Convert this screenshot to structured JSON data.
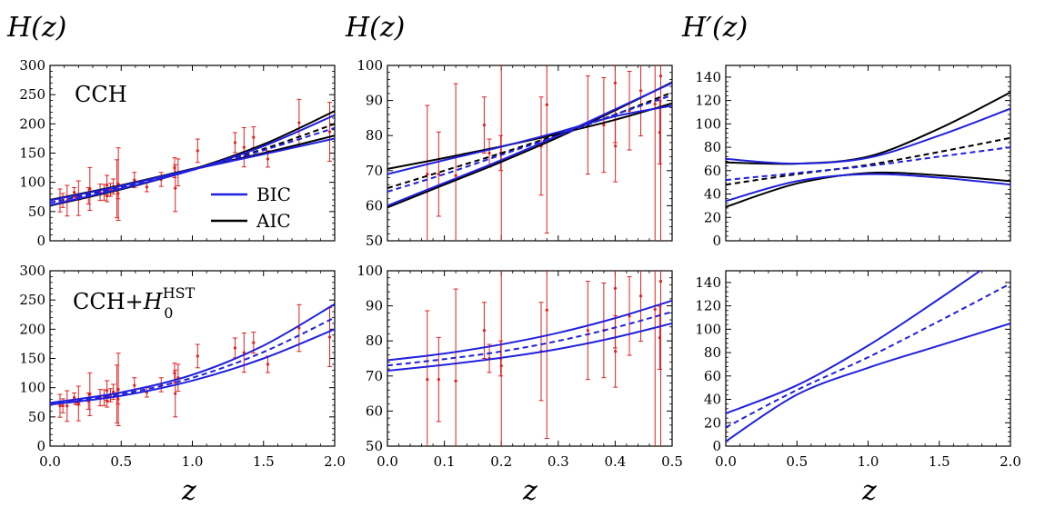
{
  "columns": [
    {
      "label": "H(z)"
    },
    {
      "label": "H(z)"
    },
    {
      "label": "H′(z)"
    }
  ],
  "xlabel": "z",
  "panel_labels": {
    "top": "CCH",
    "bottom_prefix": "CCH+",
    "bottom_h": "H",
    "bottom_sub": "0",
    "bottom_sup": "HST"
  },
  "legend": [
    {
      "name": "BIC",
      "color": "#2020dd"
    },
    {
      "name": "AIC",
      "color": "#000000"
    }
  ],
  "colors": {
    "bic": "#2020dd",
    "aic": "#000000",
    "data": "#e02020"
  },
  "chart_data": [
    {
      "id": "top-left",
      "type": "line",
      "xlim": [
        0,
        2
      ],
      "ylim": [
        0,
        300
      ],
      "xticks": [
        "0.0",
        "0.5",
        "1.0",
        "1.5",
        "2.0"
      ],
      "yticks": [
        "0",
        "50",
        "100",
        "150",
        "200",
        "250",
        "300"
      ],
      "show_xticklabels": false,
      "series": [
        {
          "legend": "AIC",
          "style": "solid",
          "x": [
            0,
            0.5,
            1,
            1.5,
            2
          ],
          "y": [
            60,
            88,
            122,
            165,
            222
          ]
        },
        {
          "legend": "AIC",
          "style": "solid",
          "x": [
            0,
            0.5,
            1,
            1.5,
            2
          ],
          "y": [
            70,
            95,
            123,
            150,
            180
          ]
        },
        {
          "legend": "AIC",
          "style": "dashed",
          "x": [
            0,
            0.5,
            1,
            1.5,
            2
          ],
          "y": [
            65,
            92,
            122,
            157,
            200
          ]
        },
        {
          "legend": "BIC",
          "style": "solid",
          "x": [
            0,
            0.5,
            1,
            1.5,
            2
          ],
          "y": [
            61,
            89,
            121,
            162,
            215
          ]
        },
        {
          "legend": "BIC",
          "style": "solid",
          "x": [
            0,
            0.5,
            1,
            1.5,
            2
          ],
          "y": [
            69,
            94,
            122,
            148,
            175
          ]
        },
        {
          "legend": "BIC",
          "style": "dashed",
          "x": [
            0,
            0.5,
            1,
            1.5,
            2
          ],
          "y": [
            65,
            91,
            121,
            155,
            193
          ]
        }
      ],
      "points": [
        {
          "x": 0.07,
          "y": 69,
          "err": 19.6
        },
        {
          "x": 0.09,
          "y": 69,
          "err": 12
        },
        {
          "x": 0.12,
          "y": 68.6,
          "err": 26.2
        },
        {
          "x": 0.17,
          "y": 83,
          "err": 8
        },
        {
          "x": 0.179,
          "y": 75,
          "err": 4
        },
        {
          "x": 0.199,
          "y": 75,
          "err": 5
        },
        {
          "x": 0.2,
          "y": 72.9,
          "err": 29.6
        },
        {
          "x": 0.27,
          "y": 77,
          "err": 14
        },
        {
          "x": 0.28,
          "y": 88.8,
          "err": 36.6
        },
        {
          "x": 0.352,
          "y": 83,
          "err": 14
        },
        {
          "x": 0.38,
          "y": 83,
          "err": 13.5
        },
        {
          "x": 0.4,
          "y": 95,
          "err": 17
        },
        {
          "x": 0.4004,
          "y": 77,
          "err": 10.2
        },
        {
          "x": 0.425,
          "y": 87.1,
          "err": 11.2
        },
        {
          "x": 0.445,
          "y": 92.8,
          "err": 12.9
        },
        {
          "x": 0.47,
          "y": 89,
          "err": 49.6
        },
        {
          "x": 0.4783,
          "y": 80.9,
          "err": 9
        },
        {
          "x": 0.48,
          "y": 97,
          "err": 62
        },
        {
          "x": 0.593,
          "y": 104,
          "err": 13
        },
        {
          "x": 0.68,
          "y": 92,
          "err": 8
        },
        {
          "x": 0.781,
          "y": 105,
          "err": 12
        },
        {
          "x": 0.875,
          "y": 125,
          "err": 17
        },
        {
          "x": 0.88,
          "y": 90,
          "err": 40
        },
        {
          "x": 0.9,
          "y": 117,
          "err": 23
        },
        {
          "x": 1.037,
          "y": 154,
          "err": 20
        },
        {
          "x": 1.3,
          "y": 168,
          "err": 17
        },
        {
          "x": 1.363,
          "y": 160,
          "err": 33.6
        },
        {
          "x": 1.43,
          "y": 177,
          "err": 18
        },
        {
          "x": 1.53,
          "y": 140,
          "err": 14
        },
        {
          "x": 1.75,
          "y": 202,
          "err": 40
        },
        {
          "x": 1.965,
          "y": 186.5,
          "err": 50.4
        }
      ]
    },
    {
      "id": "top-middle",
      "type": "line",
      "xlim": [
        0,
        0.5
      ],
      "ylim": [
        50,
        100
      ],
      "xticks": [
        "0.0",
        "0.1",
        "0.2",
        "0.3",
        "0.4",
        "0.5"
      ],
      "yticks": [
        "50",
        "60",
        "70",
        "80",
        "90",
        "100"
      ],
      "show_xticklabels": false,
      "series": [
        {
          "legend": "AIC",
          "style": "solid",
          "x": [
            0,
            0.1,
            0.2,
            0.3,
            0.4,
            0.5
          ],
          "y": [
            70.5,
            73.6,
            76.9,
            80.5,
            84.5,
            89.2
          ]
        },
        {
          "legend": "AIC",
          "style": "solid",
          "x": [
            0,
            0.1,
            0.2,
            0.3,
            0.4,
            0.5
          ],
          "y": [
            59.5,
            66,
            72.5,
            79.5,
            87.2,
            95.2
          ]
        },
        {
          "legend": "AIC",
          "style": "dashed",
          "x": [
            0,
            0.1,
            0.2,
            0.3,
            0.4,
            0.5
          ],
          "y": [
            65,
            70,
            75,
            80.3,
            86,
            92.3
          ]
        },
        {
          "legend": "BIC",
          "style": "solid",
          "x": [
            0,
            0.1,
            0.2,
            0.3,
            0.4,
            0.5
          ],
          "y": [
            69,
            73,
            76.8,
            81,
            85.5,
            88.5
          ]
        },
        {
          "legend": "BIC",
          "style": "solid",
          "x": [
            0,
            0.1,
            0.2,
            0.3,
            0.4,
            0.5
          ],
          "y": [
            60,
            66.5,
            73,
            80,
            87.5,
            95
          ]
        },
        {
          "legend": "BIC",
          "style": "dashed",
          "x": [
            0,
            0.1,
            0.2,
            0.3,
            0.4,
            0.5
          ],
          "y": [
            64,
            69,
            74.5,
            80,
            86,
            91.5
          ]
        }
      ],
      "points": [
        {
          "x": 0.07,
          "y": 69,
          "err": 19.6
        },
        {
          "x": 0.09,
          "y": 69,
          "err": 12
        },
        {
          "x": 0.12,
          "y": 68.6,
          "err": 26.2
        },
        {
          "x": 0.17,
          "y": 83,
          "err": 8
        },
        {
          "x": 0.179,
          "y": 75,
          "err": 4
        },
        {
          "x": 0.199,
          "y": 75,
          "err": 5
        },
        {
          "x": 0.2,
          "y": 72.9,
          "err": 29.6
        },
        {
          "x": 0.27,
          "y": 77,
          "err": 14
        },
        {
          "x": 0.28,
          "y": 88.8,
          "err": 36.6
        },
        {
          "x": 0.352,
          "y": 83,
          "err": 14
        },
        {
          "x": 0.38,
          "y": 83,
          "err": 13.5
        },
        {
          "x": 0.4,
          "y": 95,
          "err": 17
        },
        {
          "x": 0.4004,
          "y": 77,
          "err": 10.2
        },
        {
          "x": 0.425,
          "y": 87.1,
          "err": 11.2
        },
        {
          "x": 0.445,
          "y": 92.8,
          "err": 12.9
        },
        {
          "x": 0.47,
          "y": 89,
          "err": 49.6
        },
        {
          "x": 0.4783,
          "y": 80.9,
          "err": 9
        },
        {
          "x": 0.48,
          "y": 97,
          "err": 62
        }
      ]
    },
    {
      "id": "top-right",
      "type": "line",
      "xlim": [
        0,
        2
      ],
      "ylim": [
        0,
        150
      ],
      "xticks": [
        "0.0",
        "0.5",
        "1.0",
        "1.5",
        "2.0"
      ],
      "yticks": [
        "0",
        "20",
        "40",
        "60",
        "80",
        "100",
        "120",
        "140"
      ],
      "show_xticklabels": false,
      "series": [
        {
          "legend": "AIC",
          "style": "solid",
          "x": [
            0,
            0.5,
            1,
            1.5,
            2
          ],
          "y": [
            67,
            66,
            72,
            96,
            127
          ]
        },
        {
          "legend": "AIC",
          "style": "solid",
          "x": [
            0,
            0.5,
            1,
            1.5,
            2
          ],
          "y": [
            29,
            49,
            58,
            56,
            51
          ]
        },
        {
          "legend": "AIC",
          "style": "dashed",
          "x": [
            0,
            0.5,
            1,
            1.5,
            2
          ],
          "y": [
            48,
            57,
            65,
            76,
            88
          ]
        },
        {
          "legend": "BIC",
          "style": "solid",
          "x": [
            0,
            0.5,
            1,
            1.5,
            2
          ],
          "y": [
            70,
            66,
            71,
            90,
            113
          ]
        },
        {
          "legend": "BIC",
          "style": "solid",
          "x": [
            0,
            0.5,
            1,
            1.5,
            2
          ],
          "y": [
            34,
            51,
            57,
            54,
            48
          ]
        },
        {
          "legend": "BIC",
          "style": "dashed",
          "x": [
            0,
            0.5,
            1,
            1.5,
            2
          ],
          "y": [
            52,
            58,
            64,
            72,
            80
          ]
        }
      ],
      "points": []
    },
    {
      "id": "bottom-left",
      "type": "line",
      "xlim": [
        0,
        2
      ],
      "ylim": [
        0,
        300
      ],
      "xticks": [
        "0.0",
        "0.5",
        "1.0",
        "1.5",
        "2.0"
      ],
      "yticks": [
        "0",
        "50",
        "100",
        "150",
        "200",
        "250",
        "300"
      ],
      "show_xticklabels": true,
      "series": [
        {
          "legend": "BIC",
          "style": "solid",
          "x": [
            0,
            0.5,
            1,
            1.5,
            2
          ],
          "y": [
            74,
            92,
            122,
            172,
            243
          ]
        },
        {
          "legend": "BIC",
          "style": "solid",
          "x": [
            0,
            0.5,
            1,
            1.5,
            2
          ],
          "y": [
            71,
            86,
            112,
            150,
            200
          ]
        },
        {
          "legend": "BIC",
          "style": "dashed",
          "x": [
            0,
            0.5,
            1,
            1.5,
            2
          ],
          "y": [
            73,
            89,
            117,
            161,
            220
          ]
        }
      ],
      "points": [
        {
          "x": 0.07,
          "y": 69,
          "err": 19.6
        },
        {
          "x": 0.09,
          "y": 69,
          "err": 12
        },
        {
          "x": 0.12,
          "y": 68.6,
          "err": 26.2
        },
        {
          "x": 0.17,
          "y": 83,
          "err": 8
        },
        {
          "x": 0.179,
          "y": 75,
          "err": 4
        },
        {
          "x": 0.199,
          "y": 75,
          "err": 5
        },
        {
          "x": 0.2,
          "y": 72.9,
          "err": 29.6
        },
        {
          "x": 0.27,
          "y": 77,
          "err": 14
        },
        {
          "x": 0.28,
          "y": 88.8,
          "err": 36.6
        },
        {
          "x": 0.352,
          "y": 83,
          "err": 14
        },
        {
          "x": 0.38,
          "y": 83,
          "err": 13.5
        },
        {
          "x": 0.4,
          "y": 95,
          "err": 17
        },
        {
          "x": 0.4004,
          "y": 77,
          "err": 10.2
        },
        {
          "x": 0.425,
          "y": 87.1,
          "err": 11.2
        },
        {
          "x": 0.445,
          "y": 92.8,
          "err": 12.9
        },
        {
          "x": 0.47,
          "y": 89,
          "err": 49.6
        },
        {
          "x": 0.4783,
          "y": 80.9,
          "err": 9
        },
        {
          "x": 0.48,
          "y": 97,
          "err": 62
        },
        {
          "x": 0.593,
          "y": 104,
          "err": 13
        },
        {
          "x": 0.68,
          "y": 92,
          "err": 8
        },
        {
          "x": 0.781,
          "y": 105,
          "err": 12
        },
        {
          "x": 0.875,
          "y": 125,
          "err": 17
        },
        {
          "x": 0.88,
          "y": 90,
          "err": 40
        },
        {
          "x": 0.9,
          "y": 117,
          "err": 23
        },
        {
          "x": 1.037,
          "y": 154,
          "err": 20
        },
        {
          "x": 1.3,
          "y": 168,
          "err": 17
        },
        {
          "x": 1.363,
          "y": 160,
          "err": 33.6
        },
        {
          "x": 1.43,
          "y": 177,
          "err": 18
        },
        {
          "x": 1.53,
          "y": 140,
          "err": 14
        },
        {
          "x": 1.75,
          "y": 202,
          "err": 40
        },
        {
          "x": 1.965,
          "y": 186.5,
          "err": 50.4
        }
      ]
    },
    {
      "id": "bottom-middle",
      "type": "line",
      "xlim": [
        0,
        0.5
      ],
      "ylim": [
        50,
        100
      ],
      "xticks": [
        "0.0",
        "0.1",
        "0.2",
        "0.3",
        "0.4",
        "0.5"
      ],
      "yticks": [
        "50",
        "60",
        "70",
        "80",
        "90",
        "100"
      ],
      "show_xticklabels": true,
      "series": [
        {
          "legend": "BIC",
          "style": "solid",
          "x": [
            0,
            0.1,
            0.2,
            0.3,
            0.4,
            0.5
          ],
          "y": [
            74.5,
            76.4,
            79,
            82.3,
            86.5,
            91.5
          ]
        },
        {
          "legend": "BIC",
          "style": "solid",
          "x": [
            0,
            0.1,
            0.2,
            0.3,
            0.4,
            0.5
          ],
          "y": [
            71.5,
            73.2,
            75.2,
            77.7,
            81,
            85
          ]
        },
        {
          "legend": "BIC",
          "style": "dashed",
          "x": [
            0,
            0.1,
            0.2,
            0.3,
            0.4,
            0.5
          ],
          "y": [
            73,
            74.8,
            77,
            80,
            83.8,
            88.3
          ]
        }
      ],
      "points": [
        {
          "x": 0.07,
          "y": 69,
          "err": 19.6
        },
        {
          "x": 0.09,
          "y": 69,
          "err": 12
        },
        {
          "x": 0.12,
          "y": 68.6,
          "err": 26.2
        },
        {
          "x": 0.17,
          "y": 83,
          "err": 8
        },
        {
          "x": 0.179,
          "y": 75,
          "err": 4
        },
        {
          "x": 0.199,
          "y": 75,
          "err": 5
        },
        {
          "x": 0.2,
          "y": 72.9,
          "err": 29.6
        },
        {
          "x": 0.27,
          "y": 77,
          "err": 14
        },
        {
          "x": 0.28,
          "y": 88.8,
          "err": 36.6
        },
        {
          "x": 0.352,
          "y": 83,
          "err": 14
        },
        {
          "x": 0.38,
          "y": 83,
          "err": 13.5
        },
        {
          "x": 0.4,
          "y": 95,
          "err": 17
        },
        {
          "x": 0.4004,
          "y": 77,
          "err": 10.2
        },
        {
          "x": 0.425,
          "y": 87.1,
          "err": 11.2
        },
        {
          "x": 0.445,
          "y": 92.8,
          "err": 12.9
        },
        {
          "x": 0.47,
          "y": 89,
          "err": 49.6
        },
        {
          "x": 0.4783,
          "y": 80.9,
          "err": 9
        },
        {
          "x": 0.48,
          "y": 97,
          "err": 62
        }
      ]
    },
    {
      "id": "bottom-right",
      "type": "line",
      "xlim": [
        0,
        2
      ],
      "ylim": [
        0,
        150
      ],
      "xticks": [
        "0.0",
        "0.5",
        "1.0",
        "1.5",
        "2.0"
      ],
      "yticks": [
        "0",
        "20",
        "40",
        "60",
        "80",
        "100",
        "120",
        "140"
      ],
      "show_xticklabels": true,
      "series": [
        {
          "legend": "BIC",
          "style": "solid",
          "x": [
            0,
            0.5,
            1,
            1.5,
            2
          ],
          "y": [
            28,
            52,
            86,
            126,
            168
          ]
        },
        {
          "legend": "BIC",
          "style": "solid",
          "x": [
            0,
            0.5,
            1,
            1.5,
            2
          ],
          "y": [
            4,
            44,
            67,
            86,
            105
          ]
        },
        {
          "legend": "BIC",
          "style": "dashed",
          "x": [
            0,
            0.5,
            1,
            1.5,
            2
          ],
          "y": [
            16,
            48,
            76,
            107,
            139
          ]
        }
      ],
      "points": []
    }
  ]
}
